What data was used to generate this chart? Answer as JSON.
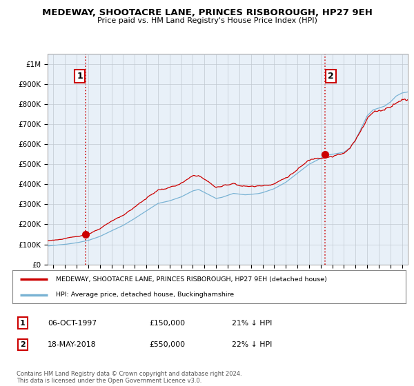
{
  "title": "MEDEWAY, SHOOTACRE LANE, PRINCES RISBOROUGH, HP27 9EH",
  "subtitle": "Price paid vs. HM Land Registry's House Price Index (HPI)",
  "legend_line1": "MEDEWAY, SHOOTACRE LANE, PRINCES RISBOROUGH, HP27 9EH (detached house)",
  "legend_line2": "HPI: Average price, detached house, Buckinghamshire",
  "footer": "Contains HM Land Registry data © Crown copyright and database right 2024.\nThis data is licensed under the Open Government Licence v3.0.",
  "sale1_label": "1",
  "sale1_date": "06-OCT-1997",
  "sale1_price": "£150,000",
  "sale1_hpi": "21% ↓ HPI",
  "sale1_year": 1997.77,
  "sale1_value": 150000,
  "sale2_label": "2",
  "sale2_date": "18-MAY-2018",
  "sale2_price": "£550,000",
  "sale2_hpi": "22% ↓ HPI",
  "sale2_year": 2018.38,
  "sale2_value": 550000,
  "hpi_color": "#7ab3d4",
  "price_color": "#cc0000",
  "dashed_color": "#cc0000",
  "marker_color": "#cc0000",
  "ylim": [
    0,
    1050000
  ],
  "yticks": [
    0,
    100000,
    200000,
    300000,
    400000,
    500000,
    600000,
    700000,
    800000,
    900000,
    1000000
  ],
  "ytick_labels": [
    "£0",
    "£100K",
    "£200K",
    "£300K",
    "£400K",
    "£500K",
    "£600K",
    "£700K",
    "£800K",
    "£900K",
    "£1M"
  ],
  "xlim_start": 1994.5,
  "xlim_end": 2025.5,
  "background_color": "#ffffff",
  "chart_bg": "#e8f0f8",
  "grid_color": "#c0c8d0"
}
